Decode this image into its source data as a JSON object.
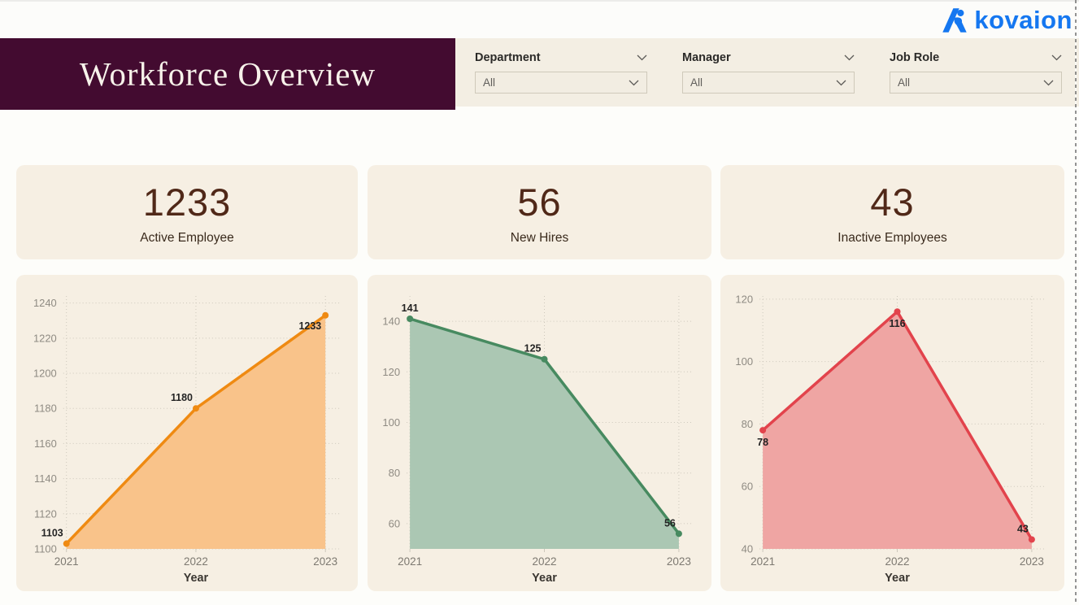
{
  "logo": {
    "text": "kovaion",
    "color": "#1577f0"
  },
  "header": {
    "title": "Workforce Overview",
    "bg": "#430b30"
  },
  "filters": [
    {
      "label": "Department",
      "value": "All"
    },
    {
      "label": "Manager",
      "value": "All"
    },
    {
      "label": "Job Role",
      "value": "All"
    }
  ],
  "kpis": [
    {
      "value": "1233",
      "label": "Active Employee"
    },
    {
      "value": "56",
      "label": "New Hires"
    },
    {
      "value": "43",
      "label": "Inactive Employees"
    }
  ],
  "chart_data": [
    {
      "type": "area",
      "name": "active-employees-by-year",
      "categories": [
        "2021",
        "2022",
        "2023"
      ],
      "values": [
        1103,
        1180,
        1233
      ],
      "xlabel": "Year",
      "ylim": [
        1100,
        1244
      ],
      "yticks": [
        1100,
        1120,
        1140,
        1160,
        1180,
        1200,
        1220,
        1240
      ],
      "grid": true,
      "legend": "none",
      "line_color": "#ef8a12",
      "fill_color": "#f9c38a",
      "label_positions": [
        "above-left",
        "above-left",
        "below-left"
      ]
    },
    {
      "type": "area",
      "name": "new-hires-by-year",
      "categories": [
        "2021",
        "2022",
        "2023"
      ],
      "values": [
        141,
        125,
        56
      ],
      "xlabel": "Year",
      "ylim": [
        50,
        150
      ],
      "yticks": [
        60,
        80,
        100,
        120,
        140
      ],
      "grid": true,
      "legend": "none",
      "line_color": "#478a60",
      "fill_color": "#abc7b3",
      "label_positions": [
        "above",
        "above-left",
        "above-left"
      ]
    },
    {
      "type": "area",
      "name": "inactive-employees-by-year",
      "categories": [
        "2021",
        "2022",
        "2023"
      ],
      "values": [
        78,
        116,
        43
      ],
      "xlabel": "Year",
      "ylim": [
        40,
        121
      ],
      "yticks": [
        40,
        60,
        80,
        100,
        120
      ],
      "grid": true,
      "legend": "none",
      "line_color": "#e2434c",
      "fill_color": "#efa5a3",
      "label_positions": [
        "below",
        "below",
        "above-left"
      ]
    }
  ]
}
